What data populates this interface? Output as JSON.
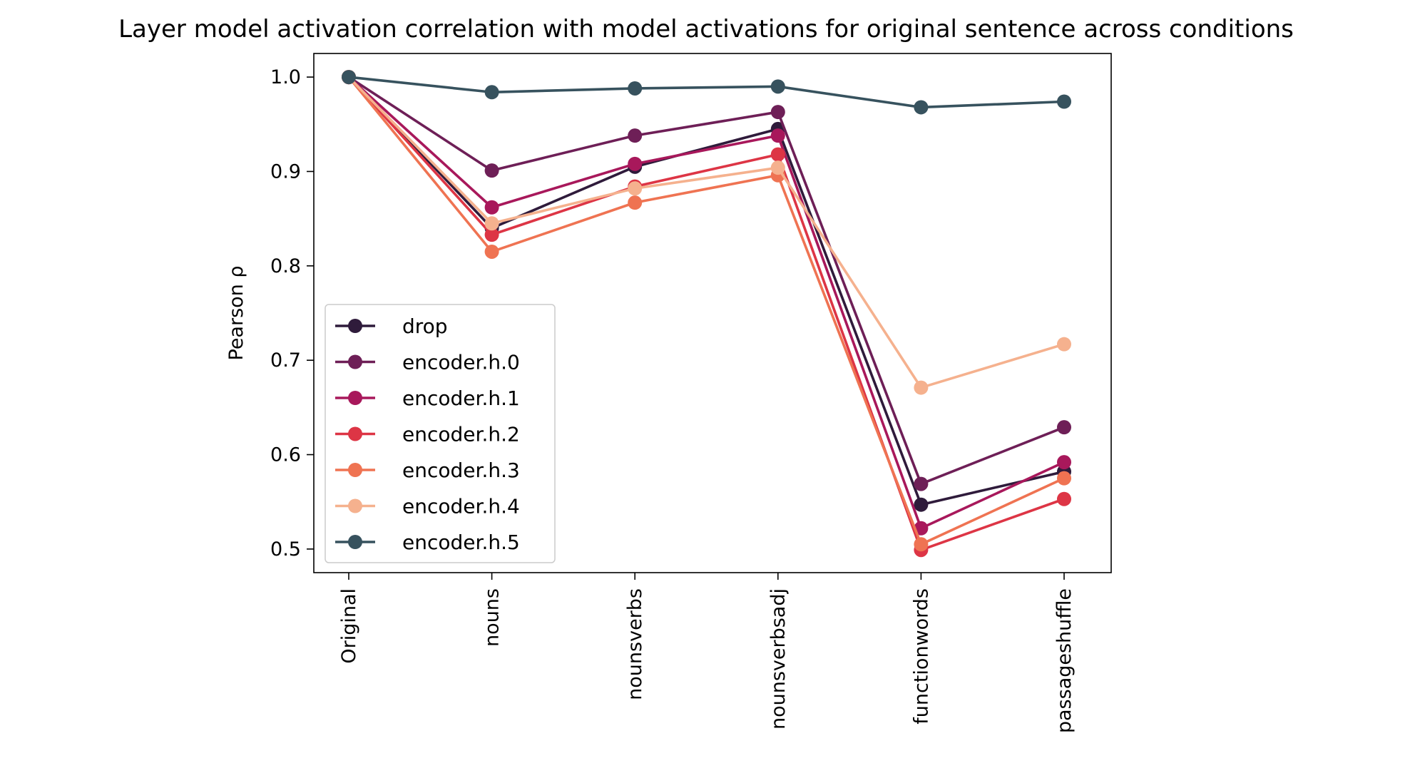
{
  "chart_data": {
    "type": "line",
    "title": "Layer model activation correlation with model activations for original sentence across conditions",
    "xlabel": "",
    "ylabel": "Pearson ρ",
    "ylim": [
      0.475,
      1.025
    ],
    "yticks": [
      0.5,
      0.6,
      0.7,
      0.8,
      0.9,
      1.0
    ],
    "grid": false,
    "legend_position": "lower-left",
    "categories": [
      "Original",
      "nouns",
      "nounsverbs",
      "nounsverbsadj",
      "functionwords",
      "passageshuffle"
    ],
    "series": [
      {
        "name": "drop",
        "color": "#2f1b3b",
        "values": [
          1.0,
          0.84,
          0.905,
          0.945,
          0.547,
          0.582
        ]
      },
      {
        "name": "encoder.h.0",
        "color": "#6e1f57",
        "values": [
          1.0,
          0.901,
          0.938,
          0.963,
          0.569,
          0.629
        ]
      },
      {
        "name": "encoder.h.1",
        "color": "#a8185b",
        "values": [
          1.0,
          0.862,
          0.908,
          0.938,
          0.522,
          0.592
        ]
      },
      {
        "name": "encoder.h.2",
        "color": "#dd3545",
        "values": [
          1.0,
          0.833,
          0.884,
          0.918,
          0.499,
          0.553
        ]
      },
      {
        "name": "encoder.h.3",
        "color": "#ef7352",
        "values": [
          1.0,
          0.815,
          0.867,
          0.896,
          0.505,
          0.575
        ]
      },
      {
        "name": "encoder.h.4",
        "color": "#f5b18e",
        "values": [
          1.0,
          0.845,
          0.882,
          0.904,
          0.671,
          0.717
        ]
      },
      {
        "name": "encoder.h.5",
        "color": "#37525e",
        "values": [
          1.0,
          0.984,
          0.988,
          0.99,
          0.968,
          0.974
        ]
      }
    ]
  }
}
